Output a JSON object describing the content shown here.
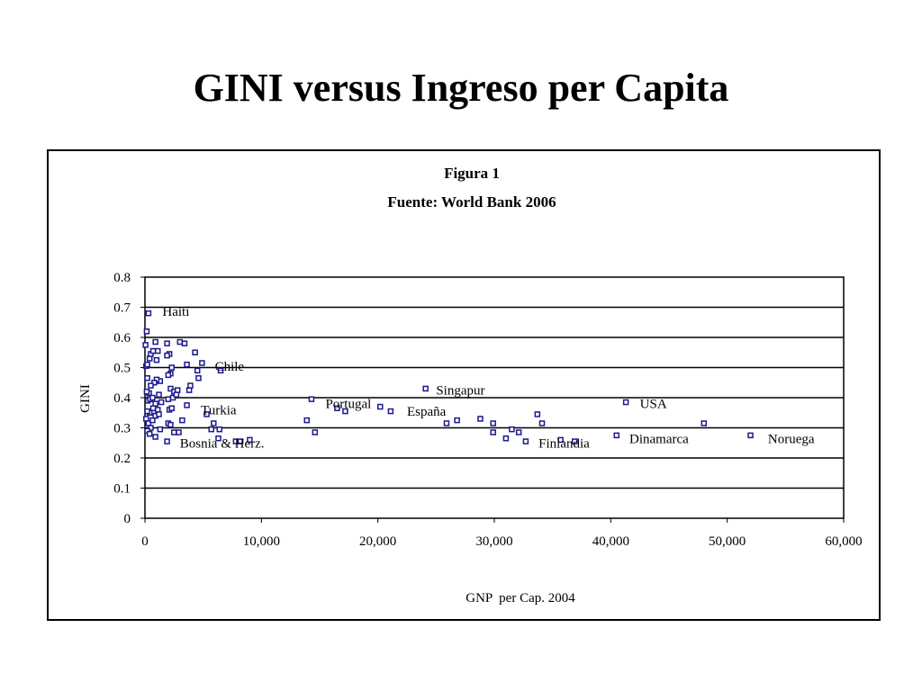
{
  "slide": {
    "title": "GINI versus Ingreso per Capita"
  },
  "chart_data": {
    "type": "scatter",
    "title": "Figura 1",
    "subtitle": "Fuente: World Bank 2006",
    "xlabel": "GNP  per Cap. 2004",
    "ylabel": "GINI",
    "xlim": [
      0,
      60000
    ],
    "ylim": [
      0,
      0.8
    ],
    "xticks": [
      0,
      10000,
      20000,
      30000,
      40000,
      50000,
      60000
    ],
    "xtick_labels": [
      "0",
      "10,000",
      "20,000",
      "30,000",
      "40,000",
      "50,000",
      "60,000"
    ],
    "yticks": [
      0,
      0.1,
      0.2,
      0.3,
      0.4,
      0.5,
      0.6,
      0.7,
      0.8
    ],
    "ytick_labels": [
      "0",
      "0.1",
      "0.2",
      "0.3",
      "0.4",
      "0.5",
      "0.6",
      "0.7",
      "0.8"
    ],
    "grid": "horizontal",
    "legend": "none",
    "marker_color": "#1a1a8c",
    "points": [
      [
        300,
        0.68
      ],
      [
        150,
        0.62
      ],
      [
        50,
        0.575
      ],
      [
        100,
        0.505
      ],
      [
        200,
        0.51
      ],
      [
        400,
        0.53
      ],
      [
        500,
        0.545
      ],
      [
        700,
        0.555
      ],
      [
        900,
        0.585
      ],
      [
        1000,
        0.525
      ],
      [
        1100,
        0.555
      ],
      [
        1300,
        0.455
      ],
      [
        1000,
        0.46
      ],
      [
        800,
        0.45
      ],
      [
        200,
        0.465
      ],
      [
        500,
        0.44
      ],
      [
        350,
        0.415
      ],
      [
        150,
        0.42
      ],
      [
        250,
        0.39
      ],
      [
        450,
        0.395
      ],
      [
        650,
        0.4
      ],
      [
        900,
        0.38
      ],
      [
        1200,
        0.41
      ],
      [
        1400,
        0.385
      ],
      [
        1100,
        0.36
      ],
      [
        700,
        0.365
      ],
      [
        400,
        0.35
      ],
      [
        200,
        0.355
      ],
      [
        100,
        0.33
      ],
      [
        300,
        0.315
      ],
      [
        500,
        0.3
      ],
      [
        650,
        0.325
      ],
      [
        900,
        0.34
      ],
      [
        1200,
        0.345
      ],
      [
        200,
        0.29
      ],
      [
        400,
        0.28
      ],
      [
        900,
        0.27
      ],
      [
        1300,
        0.295
      ],
      [
        1900,
        0.58
      ],
      [
        2100,
        0.545
      ],
      [
        3000,
        0.585
      ],
      [
        3400,
        0.58
      ],
      [
        1900,
        0.54
      ],
      [
        2300,
        0.5
      ],
      [
        2200,
        0.48
      ],
      [
        2000,
        0.475
      ],
      [
        3600,
        0.51
      ],
      [
        4300,
        0.55
      ],
      [
        4500,
        0.49
      ],
      [
        4600,
        0.465
      ],
      [
        4900,
        0.515
      ],
      [
        6500,
        0.49
      ],
      [
        2200,
        0.43
      ],
      [
        2500,
        0.42
      ],
      [
        2800,
        0.425
      ],
      [
        3800,
        0.425
      ],
      [
        3900,
        0.44
      ],
      [
        2000,
        0.395
      ],
      [
        2400,
        0.4
      ],
      [
        2700,
        0.41
      ],
      [
        3600,
        0.375
      ],
      [
        2100,
        0.36
      ],
      [
        2300,
        0.365
      ],
      [
        5300,
        0.345
      ],
      [
        2000,
        0.315
      ],
      [
        2200,
        0.31
      ],
      [
        3200,
        0.325
      ],
      [
        5900,
        0.315
      ],
      [
        5700,
        0.295
      ],
      [
        6400,
        0.295
      ],
      [
        2500,
        0.285
      ],
      [
        2900,
        0.285
      ],
      [
        1900,
        0.255
      ],
      [
        6300,
        0.265
      ],
      [
        7800,
        0.255
      ],
      [
        8200,
        0.255
      ],
      [
        9000,
        0.26
      ],
      [
        14300,
        0.395
      ],
      [
        16500,
        0.365
      ],
      [
        17200,
        0.355
      ],
      [
        20200,
        0.37
      ],
      [
        21100,
        0.355
      ],
      [
        13900,
        0.325
      ],
      [
        14600,
        0.285
      ],
      [
        24100,
        0.43
      ],
      [
        25900,
        0.315
      ],
      [
        26800,
        0.325
      ],
      [
        28800,
        0.33
      ],
      [
        29900,
        0.315
      ],
      [
        29900,
        0.285
      ],
      [
        31000,
        0.265
      ],
      [
        31500,
        0.295
      ],
      [
        32100,
        0.285
      ],
      [
        32700,
        0.255
      ],
      [
        33700,
        0.345
      ],
      [
        34100,
        0.315
      ],
      [
        35700,
        0.26
      ],
      [
        36900,
        0.255
      ],
      [
        40500,
        0.275
      ],
      [
        41300,
        0.385
      ],
      [
        48000,
        0.315
      ],
      [
        52000,
        0.275
      ]
    ],
    "annotations": [
      {
        "text": "Haití",
        "x": 1500,
        "y": 0.672
      },
      {
        "text": "Chile",
        "x": 6000,
        "y": 0.49
      },
      {
        "text": "Turkia",
        "x": 4800,
        "y": 0.345
      },
      {
        "text": "Bosnia & Herz.",
        "x": 3000,
        "y": 0.235
      },
      {
        "text": "Portugal",
        "x": 15500,
        "y": 0.365
      },
      {
        "text": "Singapur",
        "x": 25000,
        "y": 0.41
      },
      {
        "text": "España",
        "x": 22500,
        "y": 0.34
      },
      {
        "text": "USA",
        "x": 42500,
        "y": 0.365
      },
      {
        "text": "Finlandia",
        "x": 33800,
        "y": 0.235
      },
      {
        "text": "Dinamarca",
        "x": 41600,
        "y": 0.25
      },
      {
        "text": "Noruega",
        "x": 53500,
        "y": 0.25
      }
    ]
  }
}
